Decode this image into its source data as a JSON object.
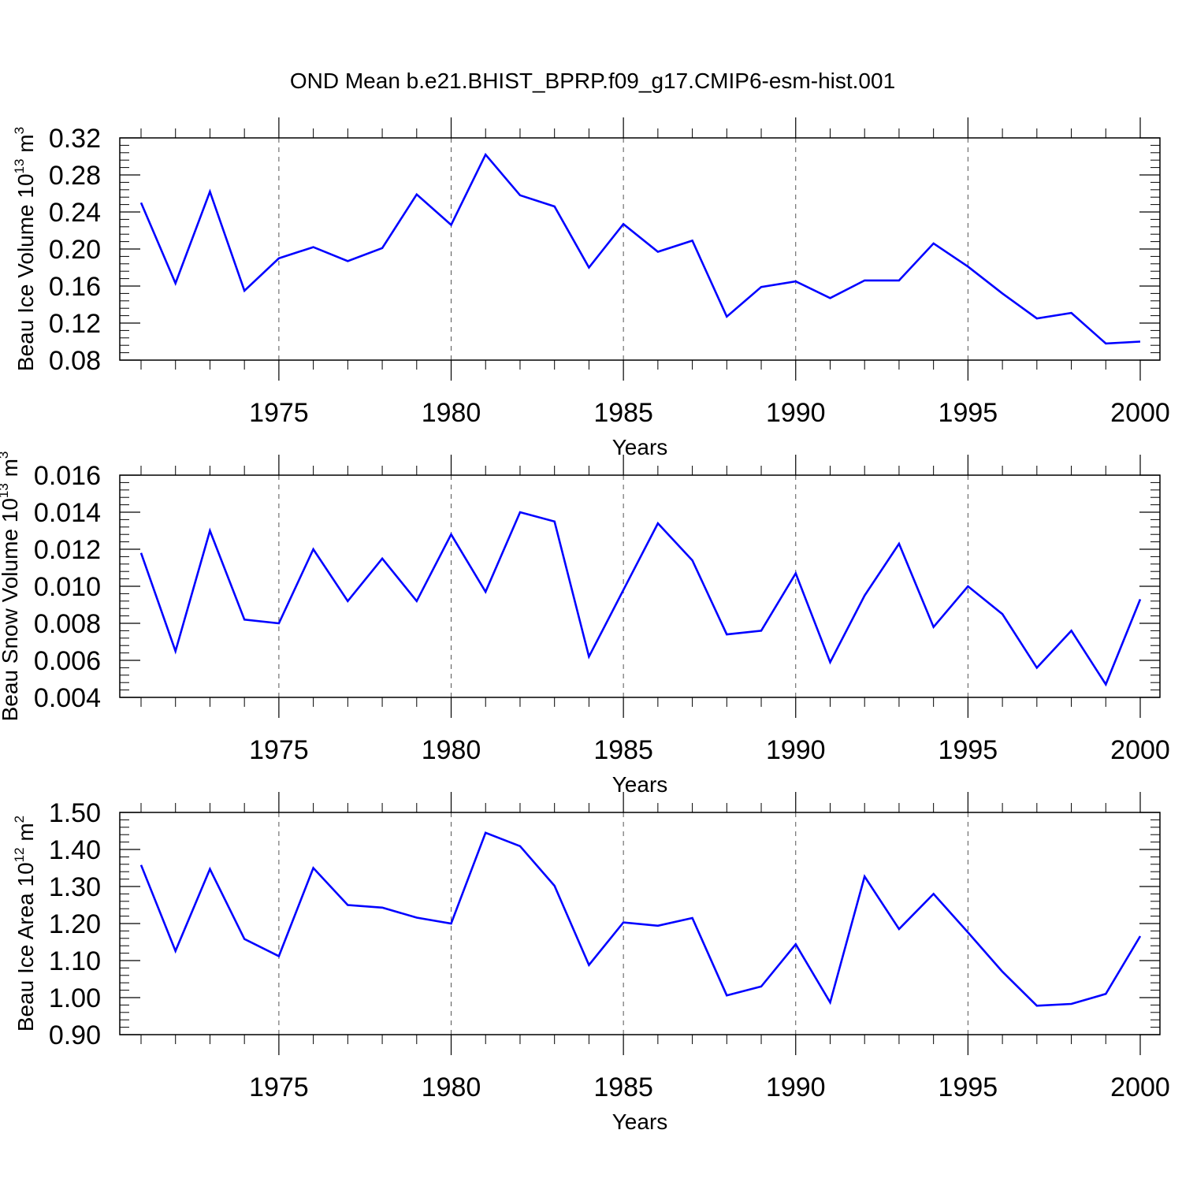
{
  "title": "OND Mean b.e21.BHIST_BPRP.f09_g17.CMIP6-esm-hist.001",
  "colors": {
    "line": "#0000ff",
    "axis": "#000000",
    "grid": "#555555"
  },
  "chart_data": [
    {
      "type": "line",
      "xlabel": "Years",
      "ylabel_main": "Beau Ice Volume 10",
      "ylabel_exp": "13",
      "ylabel_unit": " m",
      "ylabel_unit_exp": "3",
      "xlim": [
        1971,
        2000
      ],
      "ylim": [
        0.08,
        0.32
      ],
      "yticks": [
        "0.08",
        "0.12",
        "0.16",
        "0.20",
        "0.24",
        "0.28",
        "0.32"
      ],
      "xticks": [
        "1975",
        "1980",
        "1985",
        "1990",
        "1995",
        "2000"
      ],
      "grid": "vertical dashed at labeled years",
      "x": [
        1971,
        1972,
        1973,
        1974,
        1975,
        1976,
        1977,
        1978,
        1979,
        1980,
        1981,
        1982,
        1983,
        1984,
        1985,
        1986,
        1987,
        1988,
        1989,
        1990,
        1991,
        1992,
        1993,
        1994,
        1995,
        1996,
        1997,
        1998,
        1999,
        2000
      ],
      "values": [
        0.25,
        0.163,
        0.262,
        0.155,
        0.19,
        0.202,
        0.187,
        0.201,
        0.259,
        0.226,
        0.302,
        0.258,
        0.246,
        0.18,
        0.227,
        0.197,
        0.209,
        0.127,
        0.159,
        0.165,
        0.147,
        0.166,
        0.166,
        0.206,
        0.181,
        0.152,
        0.125,
        0.131,
        0.098,
        0.1
      ]
    },
    {
      "type": "line",
      "xlabel": "Years",
      "ylabel_main": "Beau Snow Volume 10",
      "ylabel_exp": "13",
      "ylabel_unit": " m",
      "ylabel_unit_exp": "3",
      "xlim": [
        1971,
        2000
      ],
      "ylim": [
        0.004,
        0.016
      ],
      "yticks": [
        "0.004",
        "0.006",
        "0.008",
        "0.010",
        "0.012",
        "0.014",
        "0.016"
      ],
      "xticks": [
        "1975",
        "1980",
        "1985",
        "1990",
        "1995",
        "2000"
      ],
      "grid": "vertical dashed at labeled years",
      "x": [
        1971,
        1972,
        1973,
        1974,
        1975,
        1976,
        1977,
        1978,
        1979,
        1980,
        1981,
        1982,
        1983,
        1984,
        1985,
        1986,
        1987,
        1988,
        1989,
        1990,
        1991,
        1992,
        1993,
        1994,
        1995,
        1996,
        1997,
        1998,
        1999,
        2000
      ],
      "values": [
        0.0118,
        0.0065,
        0.013,
        0.0082,
        0.008,
        0.012,
        0.0092,
        0.0115,
        0.0092,
        0.0128,
        0.0097,
        0.014,
        0.0135,
        0.0062,
        0.0098,
        0.0134,
        0.0114,
        0.0074,
        0.0076,
        0.0107,
        0.0059,
        0.0095,
        0.0123,
        0.0078,
        0.01,
        0.0085,
        0.0056,
        0.0076,
        0.0047,
        0.0093
      ]
    },
    {
      "type": "line",
      "xlabel": "Years",
      "ylabel_main": "Beau Ice Area 10",
      "ylabel_exp": "12",
      "ylabel_unit": " m",
      "ylabel_unit_exp": "2",
      "xlim": [
        1971,
        2000
      ],
      "ylim": [
        0.9,
        1.5
      ],
      "yticks": [
        "0.90",
        "1.00",
        "1.10",
        "1.20",
        "1.30",
        "1.40",
        "1.50"
      ],
      "xticks": [
        "1975",
        "1980",
        "1985",
        "1990",
        "1995",
        "2000"
      ],
      "grid": "vertical dashed at labeled years",
      "x": [
        1971,
        1972,
        1973,
        1974,
        1975,
        1976,
        1977,
        1978,
        1979,
        1980,
        1981,
        1982,
        1983,
        1984,
        1985,
        1986,
        1987,
        1988,
        1989,
        1990,
        1991,
        1992,
        1993,
        1994,
        1995,
        1996,
        1997,
        1998,
        1999,
        2000
      ],
      "values": [
        1.358,
        1.126,
        1.347,
        1.158,
        1.112,
        1.35,
        1.25,
        1.243,
        1.216,
        1.2,
        1.445,
        1.409,
        1.302,
        1.088,
        1.203,
        1.194,
        1.215,
        1.006,
        1.03,
        1.144,
        0.987,
        1.327,
        1.185,
        1.28,
        1.176,
        1.07,
        0.978,
        0.983,
        1.01,
        1.166
      ]
    }
  ]
}
